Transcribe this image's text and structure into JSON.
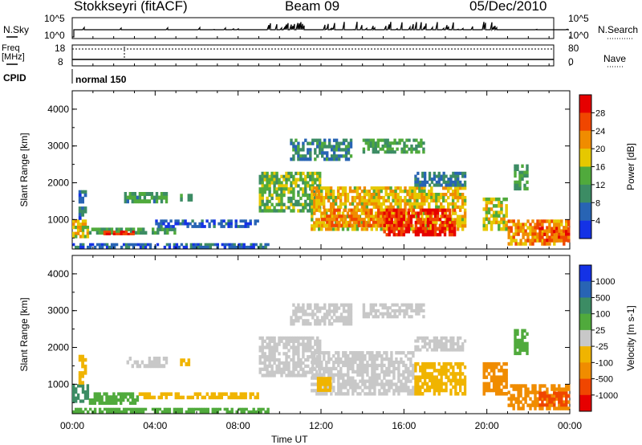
{
  "header": {
    "station": "Stokkseyri (fitACF)",
    "beam": "Beam 09",
    "date": "05/Dec/2010"
  },
  "top_panels": {
    "nsky_label": "N.Sky",
    "nsky_ticks": [
      "10^5",
      "10^0"
    ],
    "nsearch_label": "N.Search",
    "nsearch_ticks": [
      "10^5",
      "10^0"
    ],
    "freq_label_1": "Freq",
    "freq_label_2": "[MHz]",
    "freq_ticks": [
      "18",
      "8"
    ],
    "nave_label": "Nave",
    "nave_ticks": [
      "80",
      "0"
    ],
    "cpid_label": "CPID",
    "cpid_value": "normal 150"
  },
  "colors": {
    "power": [
      "#1432e6",
      "#2864b4",
      "#3c8c64",
      "#50aa3c",
      "#e6c800",
      "#f08c00",
      "#f04600",
      "#e60000"
    ],
    "velocity": [
      "#e60000",
      "#f04600",
      "#f08c00",
      "#f0b400",
      "#c8c8c8",
      "#50aa3c",
      "#3c8c64",
      "#2864b4",
      "#1432e6"
    ]
  },
  "chart_data": [
    {
      "type": "heatmap",
      "name": "power",
      "xlabel": "Time UT",
      "ylabel": "Slant Range [km]",
      "xticks": [
        "00:00",
        "04:00",
        "08:00",
        "12:00",
        "16:00",
        "20:00",
        "00:00"
      ],
      "yticks": [
        "1000",
        "2000",
        "3000",
        "4000"
      ],
      "ylim": [
        200,
        4500
      ],
      "colorbar_label": "Power [dB]",
      "colorbar_ticks": [
        "4",
        "8",
        "12",
        "16",
        "20",
        "24",
        "28"
      ],
      "regions": [
        {
          "t0": 0.0,
          "t1": 0.8,
          "r0": 500,
          "r1": 1000,
          "v": 18
        },
        {
          "t0": 0.8,
          "t1": 5.0,
          "r0": 600,
          "r1": 780,
          "v": 12
        },
        {
          "t0": 1.5,
          "t1": 3.0,
          "r0": 580,
          "r1": 700,
          "v": 27
        },
        {
          "t0": 0.0,
          "t1": 9.5,
          "r0": 220,
          "r1": 360,
          "v": 6
        },
        {
          "t0": 0.3,
          "t1": 0.7,
          "r0": 1000,
          "r1": 1800,
          "v": 7
        },
        {
          "t0": 2.5,
          "t1": 4.6,
          "r0": 1450,
          "r1": 1750,
          "v": 11
        },
        {
          "t0": 5.2,
          "t1": 5.8,
          "r0": 1500,
          "r1": 1700,
          "v": 10
        },
        {
          "t0": 4.0,
          "t1": 9.0,
          "r0": 780,
          "r1": 1000,
          "v": 5
        },
        {
          "t0": 9.0,
          "t1": 12.0,
          "r0": 1200,
          "r1": 2300,
          "v": 14
        },
        {
          "t0": 10.5,
          "t1": 13.5,
          "r0": 2600,
          "r1": 3200,
          "v": 9
        },
        {
          "t0": 11.5,
          "t1": 19.0,
          "r0": 700,
          "r1": 1900,
          "v": 19
        },
        {
          "t0": 12.0,
          "t1": 16.0,
          "r0": 800,
          "r1": 1300,
          "v": 23
        },
        {
          "t0": 15.0,
          "t1": 18.5,
          "r0": 550,
          "r1": 1300,
          "v": 29
        },
        {
          "t0": 14.0,
          "t1": 17.0,
          "r0": 2800,
          "r1": 3200,
          "v": 12
        },
        {
          "t0": 16.5,
          "t1": 19.0,
          "r0": 1900,
          "r1": 2300,
          "v": 8
        },
        {
          "t0": 19.8,
          "t1": 21.0,
          "r0": 700,
          "r1": 1600,
          "v": 17
        },
        {
          "t0": 21.0,
          "t1": 24.0,
          "r0": 300,
          "r1": 1000,
          "v": 22
        },
        {
          "t0": 21.3,
          "t1": 22.0,
          "r0": 1800,
          "r1": 2500,
          "v": 12
        },
        {
          "t0": 22.5,
          "t1": 24.0,
          "r0": 400,
          "r1": 800,
          "v": 26
        }
      ]
    },
    {
      "type": "heatmap",
      "name": "velocity",
      "xlabel": "Time UT",
      "ylabel": "Slant Range [km]",
      "xticks": [
        "00:00",
        "04:00",
        "08:00",
        "12:00",
        "16:00",
        "20:00",
        "00:00"
      ],
      "yticks": [
        "1000",
        "2000",
        "3000",
        "4000"
      ],
      "ylim": [
        200,
        4500
      ],
      "colorbar_label": "Velocity [m s-1]",
      "colorbar_ticks": [
        "1000",
        "500",
        "100",
        "25",
        "-25",
        "-100",
        "-500",
        "-1000"
      ],
      "regions": [
        {
          "t0": 0.0,
          "t1": 0.8,
          "r0": 500,
          "r1": 1000,
          "v": 150
        },
        {
          "t0": 0.8,
          "t1": 3.2,
          "r0": 450,
          "r1": 780,
          "v": 80
        },
        {
          "t0": 3.2,
          "t1": 9.0,
          "r0": 600,
          "r1": 780,
          "v": -60
        },
        {
          "t0": 0.0,
          "t1": 9.5,
          "r0": 220,
          "r1": 360,
          "v": 60
        },
        {
          "t0": 0.3,
          "t1": 0.7,
          "r0": 1000,
          "r1": 1800,
          "v": -50
        },
        {
          "t0": 2.5,
          "t1": 4.6,
          "r0": 1450,
          "r1": 1750,
          "v": 0
        },
        {
          "t0": 5.2,
          "t1": 5.8,
          "r0": 1500,
          "r1": 1700,
          "v": -80
        },
        {
          "t0": 9.0,
          "t1": 12.0,
          "r0": 1200,
          "r1": 2300,
          "v": 0
        },
        {
          "t0": 10.5,
          "t1": 13.5,
          "r0": 2600,
          "r1": 3200,
          "v": 0
        },
        {
          "t0": 11.5,
          "t1": 16.5,
          "r0": 700,
          "r1": 1900,
          "v": 0
        },
        {
          "t0": 11.8,
          "t1": 12.5,
          "r0": 800,
          "r1": 1200,
          "v": -60
        },
        {
          "t0": 16.5,
          "t1": 19.0,
          "r0": 700,
          "r1": 1600,
          "v": -80
        },
        {
          "t0": 14.0,
          "t1": 17.0,
          "r0": 2800,
          "r1": 3200,
          "v": 0
        },
        {
          "t0": 16.5,
          "t1": 19.0,
          "r0": 1900,
          "r1": 2300,
          "v": 0
        },
        {
          "t0": 19.8,
          "t1": 21.0,
          "r0": 700,
          "r1": 1600,
          "v": -300
        },
        {
          "t0": 21.0,
          "t1": 24.0,
          "r0": 300,
          "r1": 1000,
          "v": -300
        },
        {
          "t0": 21.3,
          "t1": 22.0,
          "r0": 1800,
          "r1": 2500,
          "v": 60
        },
        {
          "t0": 22.5,
          "t1": 24.0,
          "r0": 400,
          "r1": 800,
          "v": -700
        }
      ]
    }
  ]
}
